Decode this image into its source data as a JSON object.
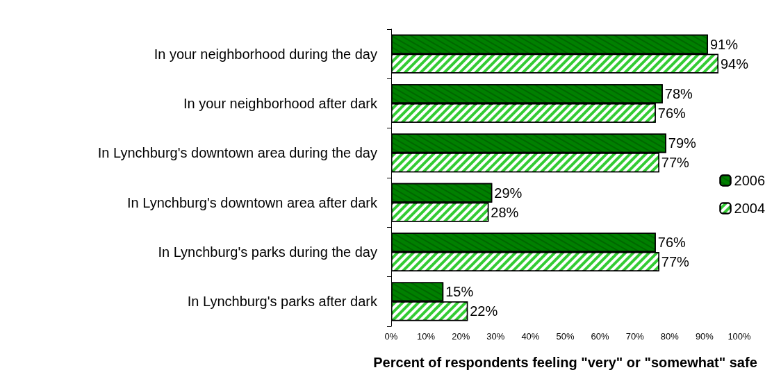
{
  "chart_data": {
    "type": "bar",
    "orientation": "horizontal",
    "xlabel": "Percent of respondents feeling \"very\" or \"somewhat\" safe",
    "categories": [
      "In your neighborhood during the day",
      "In your neighborhood after dark",
      "In Lynchburg's downtown area during the day",
      "In Lynchburg's downtown area after dark",
      "In Lynchburg's parks during the day",
      "In Lynchburg's parks after dark"
    ],
    "series": [
      {
        "name": "2006",
        "color": "#008000",
        "values": [
          91,
          78,
          79,
          29,
          76,
          15
        ],
        "value_labels": [
          "91%",
          "78%",
          "79%",
          "29%",
          "76%",
          "15%"
        ]
      },
      {
        "name": "2004",
        "color": "#33cc33",
        "values": [
          94,
          76,
          77,
          28,
          77,
          22
        ],
        "value_labels": [
          "94%",
          "76%",
          "77%",
          "28%",
          "77%",
          "22%"
        ]
      }
    ],
    "xlim": [
      0,
      100
    ],
    "xticks": [
      {
        "value": 0,
        "label": "0%"
      },
      {
        "value": 10,
        "label": "10%"
      },
      {
        "value": 20,
        "label": "20%"
      },
      {
        "value": 30,
        "label": "30%"
      },
      {
        "value": 40,
        "label": "40%"
      },
      {
        "value": 50,
        "label": "50%"
      },
      {
        "value": 60,
        "label": "60%"
      },
      {
        "value": 70,
        "label": "70%"
      },
      {
        "value": 80,
        "label": "80%"
      },
      {
        "value": 90,
        "label": "90%"
      },
      {
        "value": 100,
        "label": "100%"
      }
    ],
    "grid": false,
    "legend": "right"
  }
}
